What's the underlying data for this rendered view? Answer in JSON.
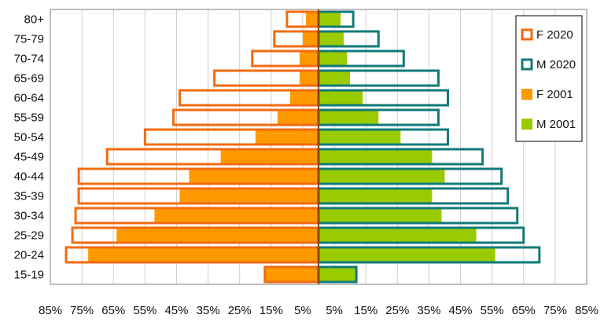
{
  "chart_data": {
    "type": "bar",
    "orientation": "horizontal-population-pyramid",
    "categories": [
      "15-19",
      "20-24",
      "25-29",
      "30-34",
      "35-39",
      "40-44",
      "45-49",
      "50-54",
      "55-59",
      "60-64",
      "65-69",
      "70-74",
      "75-79",
      "80+"
    ],
    "series": [
      {
        "name": "F 2020",
        "style": "outline",
        "side": "left",
        "color": "#f26b10",
        "values": [
          -17,
          -80,
          -78,
          -77,
          -76,
          -76,
          -67,
          -55,
          -46,
          -44,
          -33,
          -21,
          -14,
          -10
        ]
      },
      {
        "name": "M 2020",
        "style": "outline",
        "side": "right",
        "color": "#127a78",
        "values": [
          12,
          70,
          65,
          63,
          60,
          58,
          52,
          41,
          38,
          41,
          38,
          27,
          19,
          11
        ]
      },
      {
        "name": "F 2001",
        "style": "fill",
        "side": "left",
        "color": "#ff9900",
        "values": [
          -17,
          -73,
          -64,
          -52,
          -44,
          -41,
          -31,
          -20,
          -13,
          -9,
          -6,
          -6,
          -5,
          -4
        ]
      },
      {
        "name": "M 2001",
        "style": "fill",
        "side": "right",
        "color": "#99cc00",
        "values": [
          12,
          56,
          50,
          39,
          36,
          40,
          36,
          26,
          19,
          14,
          10,
          9,
          8,
          7
        ]
      }
    ],
    "x_tick_labels": [
      "85%",
      "75%",
      "65%",
      "55%",
      "45%",
      "35%",
      "25%",
      "15%",
      "5%",
      "5%",
      "15%",
      "25%",
      "35%",
      "45%",
      "55%",
      "65%",
      "75%",
      "85%"
    ],
    "xlim": [
      -85,
      85
    ],
    "grid": true,
    "legend_position": "right"
  }
}
